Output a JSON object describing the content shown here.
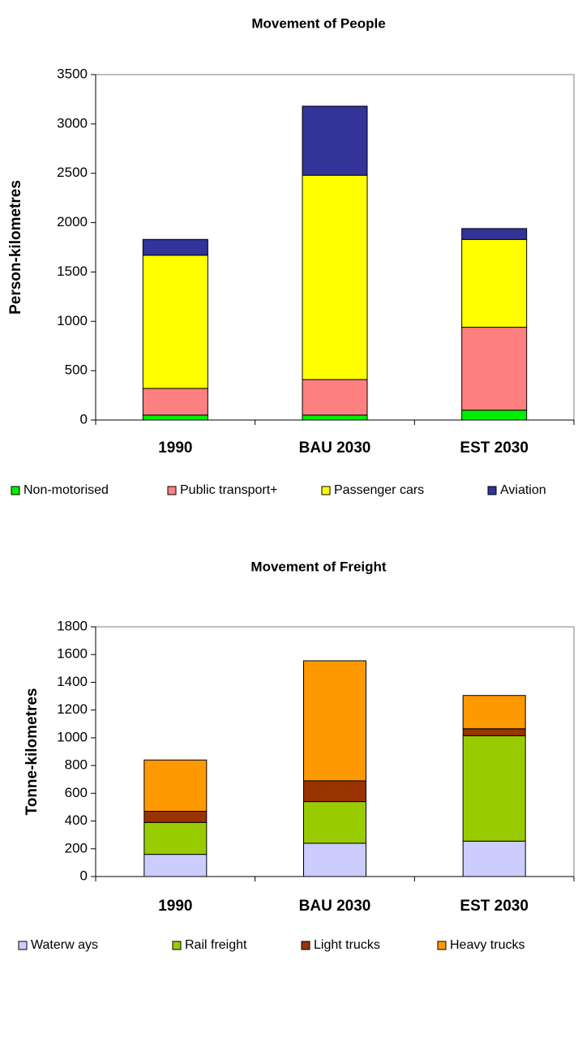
{
  "chart_data": [
    {
      "type": "stacked_bar",
      "title": "Movement of People",
      "ylabel": "Person-kilometres",
      "categories": [
        "1990",
        "BAU 2030",
        "EST 2030"
      ],
      "series": [
        {
          "name": "Non-motorised",
          "color": "#00ee00",
          "values": [
            50,
            50,
            100
          ]
        },
        {
          "name": "Public transport+",
          "color": "#ff8080",
          "values": [
            270,
            360,
            840
          ]
        },
        {
          "name": "Passenger cars",
          "color": "#ffff00",
          "values": [
            1350,
            2070,
            890
          ]
        },
        {
          "name": "Aviation",
          "color": "#333399",
          "values": [
            160,
            700,
            110
          ]
        }
      ],
      "ylim": [
        0,
        3500
      ],
      "yticks": [
        0,
        500,
        1000,
        1500,
        2000,
        2500,
        3000,
        3500
      ],
      "legend": "bottom"
    },
    {
      "type": "stacked_bar",
      "title": "Movement of Freight",
      "ylabel": "Tonne-kilometres",
      "categories": [
        "1990",
        "BAU 2030",
        "EST 2030"
      ],
      "series": [
        {
          "name": "Waterw ays",
          "color": "#ccccff",
          "values": [
            160,
            240,
            255
          ]
        },
        {
          "name": "Rail freight",
          "color": "#99cc00",
          "values": [
            230,
            300,
            760
          ]
        },
        {
          "name": "Light trucks",
          "color": "#993300",
          "values": [
            80,
            150,
            50
          ]
        },
        {
          "name": "Heavy trucks",
          "color": "#ff9900",
          "values": [
            370,
            865,
            240
          ]
        }
      ],
      "ylim": [
        0,
        1800
      ],
      "yticks": [
        0,
        200,
        400,
        600,
        800,
        1000,
        1200,
        1400,
        1600,
        1800
      ],
      "legend": "bottom"
    }
  ]
}
